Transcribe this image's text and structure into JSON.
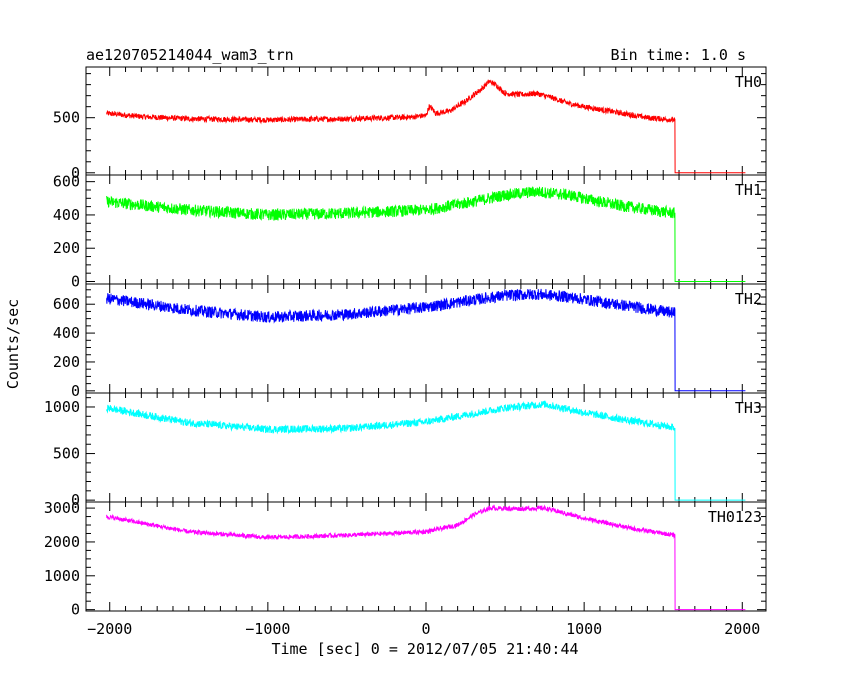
{
  "header": {
    "title": "ae120705214044_wam3_trn",
    "bin_time": "Bin time: 1.0 s"
  },
  "axes": {
    "xlabel": "Time [sec] 0 = 2012/07/05 21:40:44",
    "ylabel": "Counts/sec"
  },
  "chart_data": {
    "type": "line",
    "title": "ae120705214044_wam3_trn",
    "subtitle": "Bin time: 1.0 s",
    "xlabel": "Time [sec] 0 = 2012/07/05 21:40:44",
    "ylabel": "Counts/sec",
    "xlim": [
      -2150,
      2150
    ],
    "x_ticks": [
      -2000,
      -1000,
      0,
      1000,
      2000
    ],
    "x_tick_labels": [
      "−2000",
      "−1000",
      "0",
      "1000",
      "2000"
    ],
    "data_x_range": [
      -2020,
      2020
    ],
    "drop_x": 1575,
    "grid": false,
    "panels": [
      {
        "name": "TH0",
        "color": "#ff0000",
        "ylim": [
          -20,
          960
        ],
        "y_ticks": [
          0,
          500
        ],
        "y_minor_step": 100,
        "noise": 25,
        "post_drop_level": 0,
        "profile": [
          [
            -2020,
            540
          ],
          [
            -1800,
            510
          ],
          [
            -1500,
            490
          ],
          [
            -1000,
            480
          ],
          [
            -500,
            490
          ],
          [
            -100,
            505
          ],
          [
            0,
            520
          ],
          [
            20,
            600
          ],
          [
            40,
            580
          ],
          [
            60,
            540
          ],
          [
            150,
            560
          ],
          [
            250,
            650
          ],
          [
            350,
            760
          ],
          [
            400,
            830
          ],
          [
            450,
            790
          ],
          [
            500,
            720
          ],
          [
            600,
            710
          ],
          [
            700,
            720
          ],
          [
            800,
            680
          ],
          [
            900,
            630
          ],
          [
            1000,
            600
          ],
          [
            1200,
            550
          ],
          [
            1400,
            500
          ],
          [
            1570,
            480
          ]
        ]
      },
      {
        "name": "TH1",
        "color": "#00ff00",
        "ylim": [
          -15,
          640
        ],
        "y_ticks": [
          0,
          200,
          400,
          600
        ],
        "y_minor_step": 50,
        "noise": 35,
        "post_drop_level": 0,
        "profile": [
          [
            -2020,
            480
          ],
          [
            -1500,
            430
          ],
          [
            -1000,
            400
          ],
          [
            -500,
            410
          ],
          [
            0,
            430
          ],
          [
            300,
            480
          ],
          [
            500,
            520
          ],
          [
            700,
            540
          ],
          [
            900,
            520
          ],
          [
            1200,
            460
          ],
          [
            1570,
            410
          ]
        ]
      },
      {
        "name": "TH2",
        "color": "#0000ff",
        "ylim": [
          -15,
          740
        ],
        "y_ticks": [
          0,
          200,
          400,
          600
        ],
        "y_minor_step": 50,
        "noise": 40,
        "post_drop_level": 0,
        "profile": [
          [
            -2020,
            640
          ],
          [
            -1500,
            560
          ],
          [
            -1000,
            510
          ],
          [
            -500,
            530
          ],
          [
            0,
            580
          ],
          [
            300,
            630
          ],
          [
            500,
            660
          ],
          [
            700,
            670
          ],
          [
            900,
            650
          ],
          [
            1200,
            600
          ],
          [
            1570,
            540
          ]
        ]
      },
      {
        "name": "TH3",
        "color": "#00ffff",
        "ylim": [
          -20,
          1150
        ],
        "y_ticks": [
          0,
          500,
          1000
        ],
        "y_minor_step": 100,
        "noise": 40,
        "post_drop_level": 0,
        "profile": [
          [
            -2020,
            990
          ],
          [
            -1500,
            830
          ],
          [
            -1000,
            760
          ],
          [
            -500,
            770
          ],
          [
            0,
            840
          ],
          [
            300,
            930
          ],
          [
            500,
            990
          ],
          [
            750,
            1030
          ],
          [
            1000,
            940
          ],
          [
            1300,
            850
          ],
          [
            1570,
            780
          ]
        ]
      },
      {
        "name": "TH0123",
        "color": "#ff00ff",
        "ylim": [
          -40,
          3180
        ],
        "y_ticks": [
          0,
          1000,
          2000,
          3000
        ],
        "y_minor_step": 250,
        "noise": 65,
        "post_drop_level": 0,
        "profile": [
          [
            -2020,
            2750
          ],
          [
            -1500,
            2300
          ],
          [
            -1000,
            2130
          ],
          [
            -500,
            2200
          ],
          [
            0,
            2300
          ],
          [
            200,
            2500
          ],
          [
            300,
            2800
          ],
          [
            400,
            3000
          ],
          [
            600,
            2980
          ],
          [
            750,
            3000
          ],
          [
            1000,
            2700
          ],
          [
            1300,
            2400
          ],
          [
            1570,
            2200
          ]
        ]
      }
    ]
  }
}
